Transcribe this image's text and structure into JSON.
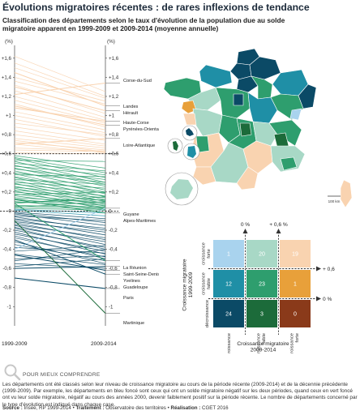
{
  "title": "Évolutions migratoires récentes : de rares inflexions de tendance",
  "subtitle": "Classification des départements selon le taux d'évolution de la population due au solde migratoire apparent en 1999-2009 et 2009-2014 (moyenne annuelle)",
  "chart_data": [
    {
      "type": "line",
      "subtype": "slope",
      "x": [
        "1999-2009",
        "2009-2014"
      ],
      "axis_unit_label": "(%)",
      "ylim": [
        -1.15,
        1.7
      ],
      "yticks": [
        {
          "v": 1.6,
          "label": "+1,6"
        },
        {
          "v": 1.4,
          "label": "+1,4"
        },
        {
          "v": 1.2,
          "label": "+1,2"
        },
        {
          "v": 1.0,
          "label": "+1"
        },
        {
          "v": 0.8,
          "label": "+0,8"
        },
        {
          "v": 0.6,
          "label": "+0,6"
        },
        {
          "v": 0.4,
          "label": "+0,4"
        },
        {
          "v": 0.2,
          "label": "+0,2"
        },
        {
          "v": 0,
          "label": "0"
        },
        {
          "v": -0.2,
          "label": "-0,2"
        },
        {
          "v": -0.4,
          "label": "-0,4"
        },
        {
          "v": -0.6,
          "label": "-0,6"
        },
        {
          "v": -0.8,
          "label": "-0,8"
        },
        {
          "v": -1.0,
          "label": "-1"
        }
      ],
      "reference_lines": [
        0.6,
        0
      ],
      "categories_colors": {
        "c1": "#a9d3ee",
        "c2": "#a8d8c6",
        "c3": "#f9d3b0",
        "c4": "#1f8fa6",
        "c5": "#2e9e6e",
        "c6": "#e8a03a",
        "c7": "#0b4a66",
        "c8": "#1c6b3a",
        "c9": "#8a3a1a"
      },
      "labeled_series": [
        {
          "name": "Corse-du-Sud",
          "y": [
            1.22,
            1.34
          ],
          "cat": "c3"
        },
        {
          "name": "Landes",
          "y": [
            1.45,
            1.1
          ],
          "cat": "c3"
        },
        {
          "name": "Hérault",
          "y": [
            1.3,
            1.05
          ],
          "cat": "c3"
        },
        {
          "name": "Haute-Corse",
          "y": [
            1.08,
            0.94
          ],
          "cat": "c3"
        },
        {
          "name": "Pyrénées-Orientales",
          "y": [
            1.1,
            0.9
          ],
          "cat": "c3"
        },
        {
          "name": "Loire-Atlantique",
          "y": [
            0.7,
            0.76
          ],
          "cat": "c3"
        },
        {
          "name": "Guyane",
          "y": [
            -0.4,
            0.03
          ],
          "cat": "c1"
        },
        {
          "name": "Alpes-Maritimes",
          "y": [
            0.12,
            -0.02
          ],
          "cat": "c5"
        },
        {
          "name": "La Réunion",
          "y": [
            0.08,
            -0.52
          ],
          "cat": "c5"
        },
        {
          "name": "Saint-Seine-Denis",
          "y": [
            -0.6,
            -0.58
          ],
          "cat": "c7"
        },
        {
          "name": "Yvelines",
          "y": [
            -0.46,
            -0.62
          ],
          "cat": "c7"
        },
        {
          "name": "Guadeloupe",
          "y": [
            -0.3,
            -0.66
          ],
          "cat": "c7"
        },
        {
          "name": "Paris",
          "y": [
            -0.7,
            -0.81
          ],
          "cat": "c7"
        },
        {
          "name": "Martinique",
          "y": [
            -0.1,
            -1.07
          ],
          "cat": "c8"
        }
      ],
      "bundle_series": [
        [
          1.62,
          1.25
        ],
        [
          1.55,
          1.2
        ],
        [
          1.5,
          1.18
        ],
        [
          1.4,
          1.15
        ],
        [
          1.36,
          1.12
        ],
        [
          1.32,
          1.02
        ],
        [
          1.26,
          0.98
        ],
        [
          1.2,
          0.95
        ],
        [
          1.16,
          0.92
        ],
        [
          1.12,
          0.88
        ],
        [
          1.04,
          0.85
        ],
        [
          1.0,
          0.82
        ],
        [
          0.96,
          0.78
        ],
        [
          0.92,
          0.8
        ],
        [
          0.88,
          0.74
        ],
        [
          0.84,
          0.7
        ],
        [
          0.8,
          0.68
        ],
        [
          0.76,
          0.66
        ],
        [
          0.74,
          0.62
        ],
        [
          0.72,
          0.64
        ],
        [
          0.7,
          0.61
        ],
        [
          0.66,
          0.63
        ],
        [
          0.64,
          0.62
        ],
        [
          0.61,
          0.6
        ],
        [
          0.58,
          0.45
        ],
        [
          0.56,
          0.4
        ],
        [
          0.55,
          0.35
        ],
        [
          0.53,
          0.52
        ],
        [
          0.52,
          0.3
        ],
        [
          0.5,
          0.42
        ],
        [
          0.48,
          0.28
        ],
        [
          0.47,
          0.38
        ],
        [
          0.45,
          0.26
        ],
        [
          0.44,
          0.33
        ],
        [
          0.42,
          0.22
        ],
        [
          0.4,
          0.3
        ],
        [
          0.39,
          0.18
        ],
        [
          0.38,
          0.36
        ],
        [
          0.36,
          0.2
        ],
        [
          0.35,
          0.15
        ],
        [
          0.33,
          0.28
        ],
        [
          0.32,
          0.12
        ],
        [
          0.3,
          0.24
        ],
        [
          0.29,
          0.1
        ],
        [
          0.28,
          0.19
        ],
        [
          0.26,
          0.08
        ],
        [
          0.25,
          0.16
        ],
        [
          0.24,
          0.05
        ],
        [
          0.22,
          0.14
        ],
        [
          0.21,
          0.02
        ],
        [
          0.2,
          0.11
        ],
        [
          0.18,
          0.07
        ],
        [
          0.17,
          0.2
        ],
        [
          0.16,
          0.04
        ],
        [
          0.14,
          0.09
        ],
        [
          0.13,
          0.01
        ],
        [
          0.12,
          0.06
        ],
        [
          0.1,
          0.03
        ],
        [
          0.09,
          0.12
        ],
        [
          0.08,
          0.15
        ],
        [
          0.06,
          0.04
        ],
        [
          0.05,
          0.02
        ],
        [
          0.04,
          0.1
        ],
        [
          0.03,
          0.01
        ],
        [
          0.02,
          -0.02
        ],
        [
          0.01,
          -0.05
        ],
        [
          -0.01,
          -0.08
        ],
        [
          -0.02,
          -0.12
        ],
        [
          -0.03,
          -0.15
        ],
        [
          -0.05,
          -0.1
        ],
        [
          -0.06,
          -0.2
        ],
        [
          -0.08,
          -0.18
        ],
        [
          -0.09,
          -0.25
        ],
        [
          -0.11,
          -0.22
        ],
        [
          -0.12,
          -0.3
        ],
        [
          -0.14,
          -0.28
        ],
        [
          -0.15,
          -0.35
        ],
        [
          -0.17,
          -0.32
        ],
        [
          -0.18,
          -0.4
        ],
        [
          -0.2,
          -0.38
        ],
        [
          -0.22,
          -0.45
        ],
        [
          -0.24,
          -0.42
        ],
        [
          -0.26,
          -0.5
        ],
        [
          -0.28,
          -0.48
        ],
        [
          -0.32,
          -0.55
        ],
        [
          -0.35,
          -0.52
        ],
        [
          -0.38,
          -0.44
        ],
        [
          -0.42,
          -0.36
        ],
        [
          -0.45,
          -0.56
        ],
        [
          -0.5,
          -0.47
        ],
        [
          -0.52,
          -0.4
        ],
        [
          -0.55,
          -0.6
        ],
        [
          -0.58,
          -0.5
        ]
      ]
    },
    {
      "type": "table",
      "subtype": "matrix",
      "xlabel": "Croissance migratoire 2009-2014",
      "ylabel": "Croissance migratoire 1999-2009",
      "col_labels": [
        "décroissance",
        "croissance faible",
        "croissance forte"
      ],
      "row_labels": [
        "croissance forte",
        "croissance faible",
        "décroissance"
      ],
      "thresholds": [
        "0 %",
        "+ 0,6 %"
      ],
      "row_thresholds": [
        "+ 0,6 %",
        "0 %"
      ],
      "cells": [
        [
          {
            "v": "1",
            "color": "#a9d3ee"
          },
          {
            "v": "20",
            "color": "#a8d8c6"
          },
          {
            "v": "19",
            "color": "#f9d3b0"
          }
        ],
        [
          {
            "v": "12",
            "color": "#1f8fa6"
          },
          {
            "v": "23",
            "color": "#2e9e6e"
          },
          {
            "v": "1",
            "color": "#e8a03a"
          }
        ],
        [
          {
            "v": "24",
            "color": "#0b4a66"
          },
          {
            "v": "3",
            "color": "#1c6b3a"
          },
          {
            "v": "0",
            "color": "#8a3a1a"
          }
        ]
      ]
    }
  ],
  "map": {
    "scale_label": "100 km",
    "colors": [
      "#0b4a66",
      "#1f8fa6",
      "#2e9e6e",
      "#a8d8c6",
      "#f9d3b0",
      "#e8a03a",
      "#a9d3ee",
      "#1c6b3a"
    ]
  },
  "note_head": "POUR MIEUX COMPRENDRE",
  "note": "Les départements ont été classés selon leur niveau de croissance migratoire au cours de la période récente (2009-2014) et de la décennie précédente (1999-2009). Par exemple, les départements en bleu foncé sont ceux qui ont un solde migratoire négatif sur les deux périodes, quand ceux en vert foncé ont vu leur solde migratoire, négatif au cours des années 2000, devenir faiblement positif sur la période récente. Le nombre de départements concerné par le type d'évolution est indiqué dans chaque case.",
  "source": {
    "label1": "Source :",
    "text1": " Insee, RP 1999-2014 • ",
    "label2": "Traitement :",
    "text2": " Observatoire des territoires • ",
    "label3": "Réalisation :",
    "text3": " CGET 2016"
  }
}
